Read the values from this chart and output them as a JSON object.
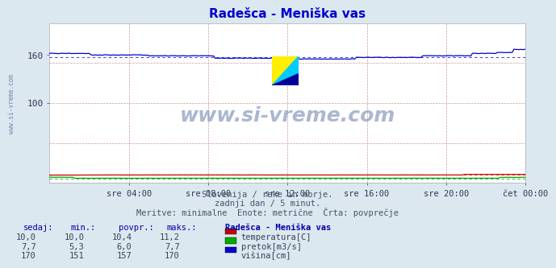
{
  "title": "Radešca - Meniška vas",
  "title_color": "#0000cc",
  "bg_color": "#dce8f0",
  "plot_bg_color": "#ffffff",
  "ylabel_color": "#333355",
  "ylim": [
    0,
    200
  ],
  "x_ticks_labels": [
    "sre 04:00",
    "sre 08:00",
    "sre 12:00",
    "sre 16:00",
    "sre 20:00",
    "čet 00:00"
  ],
  "n_points": 288,
  "visina_min": 151,
  "visina_max": 170,
  "visina_avg": 157,
  "temperatura_min": 10.0,
  "temperatura_max": 11.2,
  "temperatura_avg": 10.4,
  "pretok_min": 5.3,
  "pretok_max": 7.7,
  "pretok_avg": 6.0,
  "line_visina_color": "#0000cc",
  "line_temp_color": "#cc0000",
  "line_pretok_color": "#00aa00",
  "avg_visina_color": "#4444ff",
  "avg_temp_color": "#ff4444",
  "avg_pretok_color": "#44bb44",
  "watermark": "www.si-vreme.com",
  "watermark_color": "#8899bb",
  "grid_color": "#cc9999",
  "spine_color": "#aaaaaa",
  "table_headers": [
    "sedaj:",
    "min.:",
    "povpr.:",
    "maks.:",
    "Radešca - Meniška vas"
  ],
  "table_rows": [
    [
      "10,0",
      "10,0",
      "10,4",
      "11,2",
      "temperatura[C]",
      "#cc0000"
    ],
    [
      "7,7",
      "5,3",
      "6,0",
      "7,7",
      "pretok[m3/s]",
      "#00aa00"
    ],
    [
      "170",
      "151",
      "157",
      "170",
      "višina[cm]",
      "#0000cc"
    ]
  ],
  "sidebar_text": "www.si-vreme.com",
  "sidebar_color": "#6688aa",
  "text_color": "#445566",
  "sub_text1": "Slovenija / reke in morje.",
  "sub_text2": "zadnji dan / 5 minut.",
  "sub_text3": "Meritve: minimalne  Enote: metrične  Črta: povprečje"
}
